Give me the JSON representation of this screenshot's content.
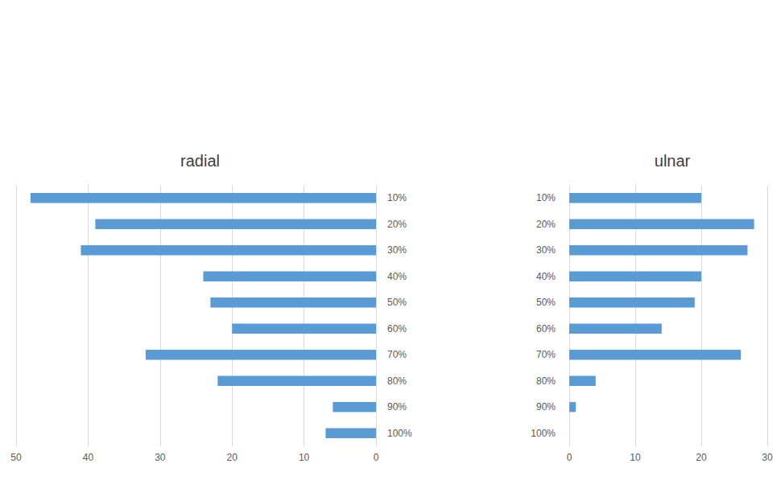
{
  "chart_data": [
    {
      "type": "bar",
      "title": "radial",
      "orientation": "horizontal",
      "categories": [
        "10%",
        "20%",
        "30%",
        "40%",
        "50%",
        "60%",
        "70%",
        "80%",
        "90%",
        "100%"
      ],
      "values": [
        48,
        39,
        41,
        24,
        23,
        20,
        32,
        22,
        6,
        7
      ],
      "color": "#5b9bd5",
      "xlim": [
        0,
        50
      ],
      "xticks": [
        0,
        10,
        20,
        30,
        40,
        50
      ],
      "grid": true
    },
    {
      "type": "bar",
      "title": "ulnar",
      "orientation": "horizontal",
      "categories": [
        "10%",
        "20%",
        "30%",
        "40%",
        "50%",
        "60%",
        "70%",
        "80%",
        "90%",
        "100%"
      ],
      "values": [
        20,
        28,
        27,
        20,
        19,
        14,
        26,
        4,
        1,
        0
      ],
      "color": "#5b9bd5",
      "xlim": [
        0,
        30
      ],
      "xticks": [
        0,
        10,
        20,
        30
      ],
      "grid": true
    }
  ]
}
